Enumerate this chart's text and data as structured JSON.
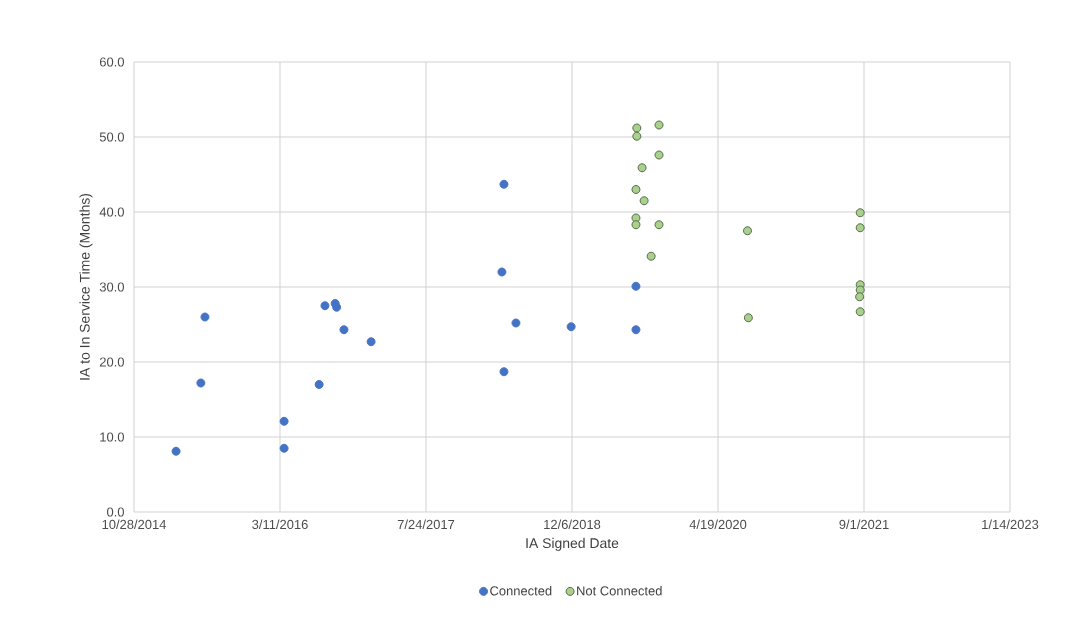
{
  "chart_data": {
    "type": "scatter",
    "xlabel": "IA Signed Date",
    "ylabel": "IA to In Service Time (Months)",
    "xlim": [
      "2014-10-28",
      "2023-01-14"
    ],
    "xticks": [
      {
        "value": "2014-10-28",
        "label": "10/28/2014"
      },
      {
        "value": "2016-03-11",
        "label": "3/11/2016"
      },
      {
        "value": "2017-07-24",
        "label": "7/24/2017"
      },
      {
        "value": "2018-12-06",
        "label": "12/6/2018"
      },
      {
        "value": "2020-04-19",
        "label": "4/19/2020"
      },
      {
        "value": "2021-09-01",
        "label": "9/1/2021"
      },
      {
        "value": "2023-01-14",
        "label": "1/14/2023"
      }
    ],
    "ylim": [
      0,
      60
    ],
    "yticks": [
      {
        "value": 0,
        "label": "0.0"
      },
      {
        "value": 10,
        "label": "10.0"
      },
      {
        "value": 20,
        "label": "20.0"
      },
      {
        "value": 30,
        "label": "30.0"
      },
      {
        "value": 40,
        "label": "40.0"
      },
      {
        "value": 50,
        "label": "50.0"
      },
      {
        "value": 60,
        "label": "60.0"
      }
    ],
    "grid": true,
    "legend": "bottom",
    "marker": "circle",
    "series": [
      {
        "name": "Connected",
        "color": "#4472c4",
        "x": [
          "2015-03-21",
          "2015-06-14",
          "2015-06-28",
          "2016-03-25",
          "2016-03-25",
          "2016-07-23",
          "2016-08-12",
          "2016-09-16",
          "2016-09-21",
          "2016-10-16",
          "2017-01-17",
          "2018-04-17",
          "2018-04-10",
          "2018-05-28",
          "2018-04-17",
          "2018-12-03",
          "2019-07-13",
          "2019-07-13"
        ],
        "values": [
          8.1,
          17.2,
          26.0,
          8.5,
          12.1,
          17.0,
          27.5,
          27.8,
          27.3,
          24.3,
          22.7,
          43.7,
          32.0,
          25.2,
          18.7,
          24.7,
          30.1,
          24.3
        ]
      },
      {
        "name": "Not Connected",
        "color": "#a9d18e",
        "x": [
          "2019-07-16",
          "2019-07-16",
          "2019-09-30",
          "2019-09-30",
          "2019-08-03",
          "2019-07-13",
          "2019-08-10",
          "2019-07-13",
          "2019-07-13",
          "2019-09-30",
          "2019-09-03",
          "2020-07-29",
          "2020-08-01",
          "2021-08-19",
          "2021-08-19",
          "2021-08-19",
          "2021-08-19",
          "2021-08-17",
          "2021-08-19"
        ],
        "values": [
          51.2,
          50.1,
          51.6,
          47.6,
          45.9,
          43.0,
          41.5,
          39.2,
          38.3,
          38.3,
          34.1,
          37.5,
          25.9,
          39.9,
          37.9,
          30.3,
          29.6,
          28.7,
          26.7
        ]
      }
    ]
  }
}
